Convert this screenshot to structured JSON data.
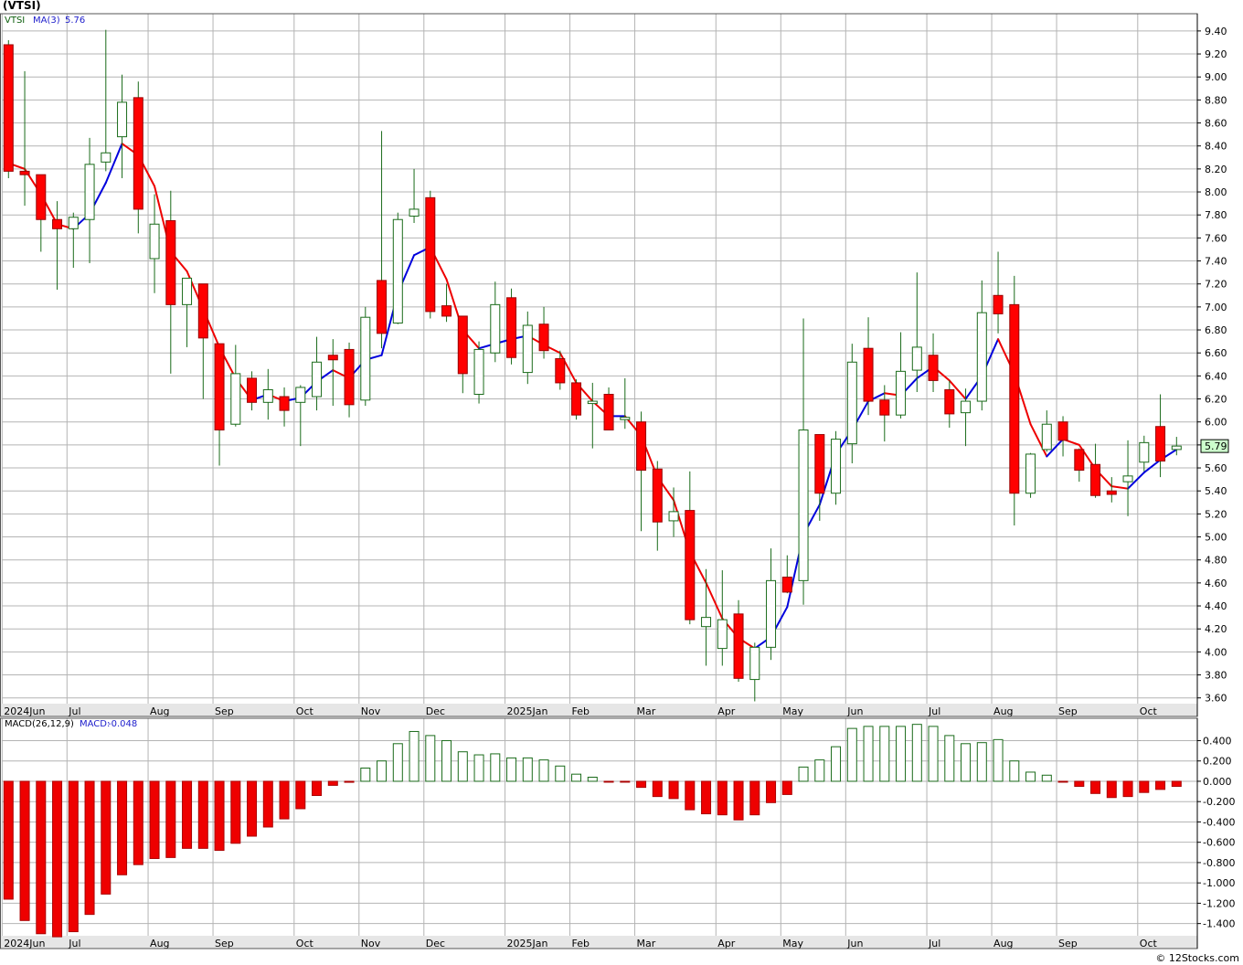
{
  "title": "(VTSI)",
  "watermark": "© 12Stocks.com",
  "colors": {
    "up_candle": "#1a6b1a",
    "down_candle": "#ff0000",
    "ma_rising": "#0000dd",
    "ma_falling": "#ee0000",
    "macd_pos": "#1a6b1a",
    "macd_neg": "#ee0000",
    "grid": "#b4b4b4",
    "axis_band": "#e6e6e6",
    "last_price_box": "#ccffcc"
  },
  "chart_data": [
    {
      "type": "candlestick",
      "legend": {
        "symbol": "VTSI",
        "ma_label": "MA(3)",
        "ma_value": "5.76"
      },
      "last_price": "5.79",
      "ylim": [
        3.55,
        9.55
      ],
      "y_ticks": [
        "9.40",
        "9.20",
        "9.00",
        "8.80",
        "8.60",
        "8.40",
        "8.20",
        "8.00",
        "7.80",
        "7.60",
        "7.40",
        "7.20",
        "7.00",
        "6.80",
        "6.60",
        "6.40",
        "6.20",
        "6.00",
        "5.80",
        "5.60",
        "5.40",
        "5.20",
        "5.00",
        "4.80",
        "4.60",
        "4.40",
        "4.20",
        "4.00",
        "3.80",
        "3.60"
      ],
      "x_labels": [
        {
          "label": "2024Jun",
          "week": 0
        },
        {
          "label": "Jul",
          "week": 4
        },
        {
          "label": "Aug",
          "week": 9
        },
        {
          "label": "Sep",
          "week": 13
        },
        {
          "label": "Oct",
          "week": 18
        },
        {
          "label": "Nov",
          "week": 22
        },
        {
          "label": "Dec",
          "week": 26
        },
        {
          "label": "2025Jan",
          "week": 31
        },
        {
          "label": "Feb",
          "week": 35
        },
        {
          "label": "Mar",
          "week": 39
        },
        {
          "label": "Apr",
          "week": 44
        },
        {
          "label": "May",
          "week": 48
        },
        {
          "label": "Jun",
          "week": 52
        },
        {
          "label": "Jul",
          "week": 57
        },
        {
          "label": "Aug",
          "week": 61
        },
        {
          "label": "Sep",
          "week": 65
        },
        {
          "label": "Oct",
          "week": 70
        }
      ],
      "candles": [
        {
          "o": 9.28,
          "h": 9.32,
          "l": 8.12,
          "c": 8.18
        },
        {
          "o": 8.18,
          "h": 9.05,
          "l": 7.88,
          "c": 8.15
        },
        {
          "o": 8.15,
          "h": 8.15,
          "l": 7.48,
          "c": 7.76
        },
        {
          "o": 7.76,
          "h": 7.92,
          "l": 7.15,
          "c": 7.68
        },
        {
          "o": 7.68,
          "h": 7.82,
          "l": 7.34,
          "c": 7.78
        },
        {
          "o": 7.76,
          "h": 8.47,
          "l": 7.38,
          "c": 8.24
        },
        {
          "o": 8.26,
          "h": 9.41,
          "l": 8.18,
          "c": 8.34
        },
        {
          "o": 8.48,
          "h": 9.02,
          "l": 8.12,
          "c": 8.78
        },
        {
          "o": 8.82,
          "h": 8.96,
          "l": 7.64,
          "c": 7.85
        },
        {
          "o": 7.42,
          "h": 7.98,
          "l": 7.12,
          "c": 7.72
        },
        {
          "o": 7.75,
          "h": 8.01,
          "l": 6.42,
          "c": 7.02
        },
        {
          "o": 7.02,
          "h": 7.25,
          "l": 6.65,
          "c": 7.25
        },
        {
          "o": 7.2,
          "h": 7.2,
          "l": 6.2,
          "c": 6.73
        },
        {
          "o": 6.68,
          "h": 6.68,
          "l": 5.62,
          "c": 5.93
        },
        {
          "o": 5.98,
          "h": 6.67,
          "l": 5.96,
          "c": 6.42
        },
        {
          "o": 6.38,
          "h": 6.44,
          "l": 6.1,
          "c": 6.17
        },
        {
          "o": 6.17,
          "h": 6.46,
          "l": 6.02,
          "c": 6.28
        },
        {
          "o": 6.22,
          "h": 6.3,
          "l": 5.96,
          "c": 6.1
        },
        {
          "o": 6.17,
          "h": 6.32,
          "l": 5.79,
          "c": 6.3
        },
        {
          "o": 6.22,
          "h": 6.74,
          "l": 6.1,
          "c": 6.52
        },
        {
          "o": 6.58,
          "h": 6.72,
          "l": 6.14,
          "c": 6.54
        },
        {
          "o": 6.63,
          "h": 6.69,
          "l": 6.04,
          "c": 6.15
        },
        {
          "o": 6.19,
          "h": 7.0,
          "l": 6.14,
          "c": 6.91
        },
        {
          "o": 7.23,
          "h": 8.53,
          "l": 6.64,
          "c": 6.77
        },
        {
          "o": 6.86,
          "h": 7.82,
          "l": 6.85,
          "c": 7.76
        },
        {
          "o": 7.79,
          "h": 8.2,
          "l": 7.73,
          "c": 7.85
        },
        {
          "o": 7.95,
          "h": 8.01,
          "l": 6.9,
          "c": 6.96
        },
        {
          "o": 7.01,
          "h": 7.2,
          "l": 6.87,
          "c": 6.92
        },
        {
          "o": 6.92,
          "h": 6.92,
          "l": 6.25,
          "c": 6.42
        },
        {
          "o": 6.24,
          "h": 6.7,
          "l": 6.16,
          "c": 6.63
        },
        {
          "o": 6.6,
          "h": 7.22,
          "l": 6.52,
          "c": 7.02
        },
        {
          "o": 7.08,
          "h": 7.16,
          "l": 6.5,
          "c": 6.56
        },
        {
          "o": 6.43,
          "h": 6.96,
          "l": 6.33,
          "c": 6.84
        },
        {
          "o": 6.85,
          "h": 7.0,
          "l": 6.55,
          "c": 6.62
        },
        {
          "o": 6.55,
          "h": 6.62,
          "l": 6.28,
          "c": 6.34
        },
        {
          "o": 6.34,
          "h": 6.37,
          "l": 6.02,
          "c": 6.06
        },
        {
          "o": 6.16,
          "h": 6.34,
          "l": 5.77,
          "c": 6.18
        },
        {
          "o": 6.24,
          "h": 6.3,
          "l": 5.93,
          "c": 5.93
        },
        {
          "o": 6.02,
          "h": 6.38,
          "l": 5.94,
          "c": 6.04
        },
        {
          "o": 6.0,
          "h": 6.09,
          "l": 5.05,
          "c": 5.58
        },
        {
          "o": 5.59,
          "h": 5.66,
          "l": 4.88,
          "c": 5.13
        },
        {
          "o": 5.14,
          "h": 5.43,
          "l": 5.0,
          "c": 5.22
        },
        {
          "o": 5.23,
          "h": 5.57,
          "l": 4.24,
          "c": 4.28
        },
        {
          "o": 4.22,
          "h": 4.72,
          "l": 3.88,
          "c": 4.3
        },
        {
          "o": 4.03,
          "h": 4.71,
          "l": 3.88,
          "c": 4.28
        },
        {
          "o": 4.33,
          "h": 4.45,
          "l": 3.74,
          "c": 3.77
        },
        {
          "o": 3.76,
          "h": 4.08,
          "l": 3.57,
          "c": 4.04
        },
        {
          "o": 4.04,
          "h": 4.9,
          "l": 3.93,
          "c": 4.62
        },
        {
          "o": 4.65,
          "h": 4.84,
          "l": 4.51,
          "c": 4.52
        },
        {
          "o": 4.62,
          "h": 6.9,
          "l": 4.41,
          "c": 5.93
        },
        {
          "o": 5.89,
          "h": 5.89,
          "l": 5.14,
          "c": 5.38
        },
        {
          "o": 5.38,
          "h": 5.92,
          "l": 5.28,
          "c": 5.85
        },
        {
          "o": 5.81,
          "h": 6.68,
          "l": 5.64,
          "c": 6.52
        },
        {
          "o": 6.64,
          "h": 6.91,
          "l": 6.06,
          "c": 6.18
        },
        {
          "o": 6.19,
          "h": 6.32,
          "l": 5.83,
          "c": 6.06
        },
        {
          "o": 6.06,
          "h": 6.78,
          "l": 6.03,
          "c": 6.44
        },
        {
          "o": 6.45,
          "h": 7.3,
          "l": 6.26,
          "c": 6.65
        },
        {
          "o": 6.58,
          "h": 6.77,
          "l": 6.26,
          "c": 6.36
        },
        {
          "o": 6.28,
          "h": 6.36,
          "l": 5.95,
          "c": 6.07
        },
        {
          "o": 6.08,
          "h": 6.29,
          "l": 5.79,
          "c": 6.18
        },
        {
          "o": 6.18,
          "h": 7.23,
          "l": 6.1,
          "c": 6.95
        },
        {
          "o": 7.1,
          "h": 7.48,
          "l": 6.77,
          "c": 6.94
        },
        {
          "o": 7.02,
          "h": 7.27,
          "l": 5.1,
          "c": 5.38
        },
        {
          "o": 5.38,
          "h": 5.73,
          "l": 5.34,
          "c": 5.72
        },
        {
          "o": 5.76,
          "h": 6.1,
          "l": 5.74,
          "c": 5.98
        },
        {
          "o": 6.0,
          "h": 6.05,
          "l": 5.7,
          "c": 5.84
        },
        {
          "o": 5.76,
          "h": 5.77,
          "l": 5.48,
          "c": 5.58
        },
        {
          "o": 5.63,
          "h": 5.81,
          "l": 5.34,
          "c": 5.36
        },
        {
          "o": 5.4,
          "h": 5.52,
          "l": 5.3,
          "c": 5.37
        },
        {
          "o": 5.48,
          "h": 5.84,
          "l": 5.18,
          "c": 5.53
        },
        {
          "o": 5.65,
          "h": 5.88,
          "l": 5.57,
          "c": 5.82
        },
        {
          "o": 5.96,
          "h": 6.24,
          "l": 5.52,
          "c": 5.66
        },
        {
          "o": 5.76,
          "h": 5.87,
          "l": 5.71,
          "c": 5.79
        }
      ],
      "ma3": [
        8.25,
        8.2,
        7.98,
        7.72,
        7.68,
        7.81,
        8.08,
        8.42,
        8.32,
        8.05,
        7.48,
        7.31,
        6.98,
        6.65,
        6.38,
        6.19,
        6.24,
        6.18,
        6.21,
        6.35,
        6.45,
        6.38,
        6.54,
        6.58,
        7.12,
        7.45,
        7.52,
        7.24,
        6.8,
        6.64,
        6.68,
        6.72,
        6.75,
        6.67,
        6.6,
        6.34,
        6.18,
        6.05,
        6.05,
        5.88,
        5.52,
        5.32,
        4.87,
        4.6,
        4.29,
        4.12,
        4.03,
        4.13,
        4.39,
        5.02,
        5.28,
        5.72,
        5.93,
        6.18,
        6.25,
        6.23,
        6.38,
        6.48,
        6.36,
        6.2,
        6.4,
        6.72,
        6.42,
        5.98,
        5.7,
        5.85,
        5.8,
        5.59,
        5.44,
        5.42,
        5.56,
        5.67,
        5.76
      ]
    },
    {
      "type": "bar",
      "legend": {
        "label": "MACD(26,12,9)",
        "macd_label": "MACD:",
        "macd_value": "-0.048"
      },
      "ylim": [
        -1.52,
        0.62
      ],
      "y_ticks": [
        "0.400",
        "0.200",
        "0.000",
        "-0.200",
        "-0.400",
        "-0.600",
        "-0.800",
        "-1.000",
        "-1.200",
        "-1.400"
      ],
      "values": [
        -1.16,
        -1.37,
        -1.5,
        -1.53,
        -1.48,
        -1.31,
        -1.11,
        -0.92,
        -0.82,
        -0.76,
        -0.75,
        -0.66,
        -0.66,
        -0.68,
        -0.61,
        -0.54,
        -0.45,
        -0.37,
        -0.27,
        -0.14,
        -0.04,
        -0.01,
        0.13,
        0.2,
        0.37,
        0.49,
        0.45,
        0.4,
        0.29,
        0.26,
        0.27,
        0.23,
        0.23,
        0.21,
        0.15,
        0.07,
        0.04,
        0.0,
        0.0,
        -0.06,
        -0.15,
        -0.17,
        -0.28,
        -0.32,
        -0.33,
        -0.38,
        -0.33,
        -0.21,
        -0.13,
        0.14,
        0.21,
        0.34,
        0.52,
        0.54,
        0.54,
        0.54,
        0.56,
        0.54,
        0.45,
        0.37,
        0.38,
        0.41,
        0.2,
        0.09,
        0.06,
        0.0,
        -0.05,
        -0.12,
        -0.16,
        -0.15,
        -0.11,
        -0.08,
        -0.05
      ]
    }
  ]
}
